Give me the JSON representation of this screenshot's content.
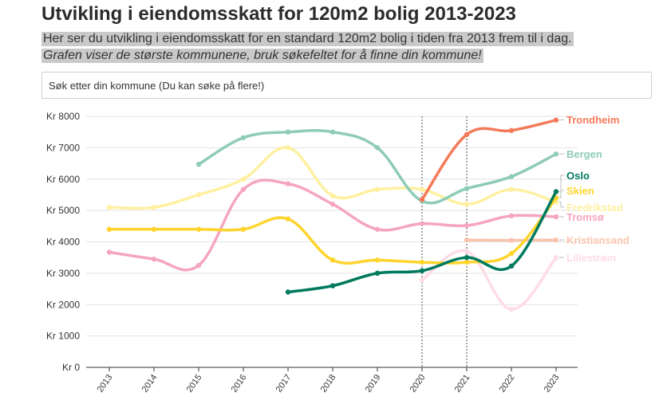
{
  "title": "Utvikling i eiendomsskatt for 120m2 bolig 2013-2023",
  "subtitle_line1": "Her ser du utvikling i eiendomsskatt for en standard 120m2 bolig i tiden fra 2013 frem til i dag.",
  "subtitle_line2": "Grafen viser de største kommunene, bruk søkefeltet for å finne din kommune!",
  "search": {
    "placeholder": "Søk etter din kommune (Du kan søke på flere!)"
  },
  "chart_data": {
    "type": "line",
    "x": [
      2013,
      2014,
      2015,
      2016,
      2017,
      2018,
      2019,
      2020,
      2021,
      2022,
      2023
    ],
    "ylim": [
      0,
      8000
    ],
    "yticks": [
      0,
      1000,
      2000,
      3000,
      4000,
      5000,
      6000,
      7000,
      8000
    ],
    "ytick_labels": [
      "Kr 0",
      "Kr 1000",
      "Kr 2000",
      "Kr 3000",
      "Kr 4000",
      "Kr 5000",
      "Kr 6000",
      "Kr 7000",
      "Kr 8000"
    ],
    "xtick_labels": [
      "2013",
      "2014",
      "2015",
      "2016",
      "2017",
      "2018",
      "2019",
      "2020",
      "2021",
      "2022",
      "2023"
    ],
    "reference_lines_x": [
      2020,
      2021
    ],
    "grid": "horizontal",
    "series": [
      {
        "name": "Trondheim",
        "color": "#f47b5a",
        "values": [
          null,
          null,
          null,
          null,
          null,
          null,
          null,
          5350,
          7420,
          7550,
          7880
        ]
      },
      {
        "name": "Bergen",
        "color": "#8ecbb8",
        "values": [
          null,
          null,
          6470,
          7320,
          7500,
          7500,
          7000,
          5300,
          5700,
          6080,
          6800
        ]
      },
      {
        "name": "Oslo",
        "color": "#007a5e",
        "values": [
          null,
          null,
          null,
          null,
          2400,
          2600,
          3000,
          3080,
          3500,
          3230,
          5600
        ]
      },
      {
        "name": "Skien",
        "color": "#ffd42e",
        "values": [
          4400,
          4400,
          4400,
          4400,
          4730,
          3420,
          3420,
          3350,
          3350,
          3630,
          5400
        ]
      },
      {
        "name": "Fredrikstad",
        "color": "#fff0a0",
        "values": [
          5100,
          5100,
          5500,
          6000,
          7000,
          5470,
          5670,
          5670,
          5200,
          5670,
          5270
        ]
      },
      {
        "name": "Tromsø",
        "color": "#f5a5c0",
        "values": [
          3670,
          3450,
          3250,
          5670,
          5850,
          5200,
          4400,
          4580,
          4520,
          4830,
          4800
        ]
      },
      {
        "name": "Kristiansand",
        "color": "#f9c4ad",
        "values": [
          null,
          null,
          null,
          null,
          null,
          null,
          null,
          null,
          4060,
          4050,
          4060
        ]
      },
      {
        "name": "Lillestrøm",
        "color": "#ffdce6",
        "values": [
          null,
          null,
          null,
          null,
          null,
          null,
          null,
          2780,
          3700,
          1850,
          3500
        ]
      }
    ]
  }
}
